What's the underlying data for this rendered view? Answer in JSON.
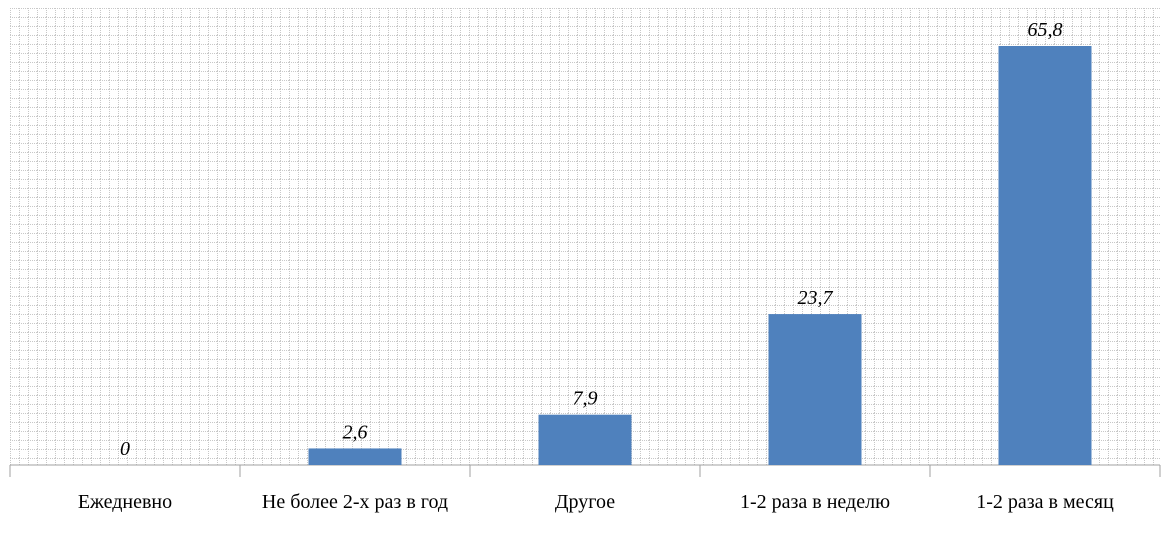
{
  "chart_data": {
    "type": "bar",
    "categories": [
      "Ежедневно",
      "Не более 2-х раз в год",
      "Другое",
      "1-2 раза в неделю",
      "1-2 раза в месяц"
    ],
    "values": [
      0,
      2.6,
      7.9,
      23.7,
      65.8
    ],
    "value_labels": [
      "0",
      "2,6",
      "7,9",
      "23,7",
      "65,8"
    ],
    "color": "#4f81bd",
    "grid": true
  }
}
